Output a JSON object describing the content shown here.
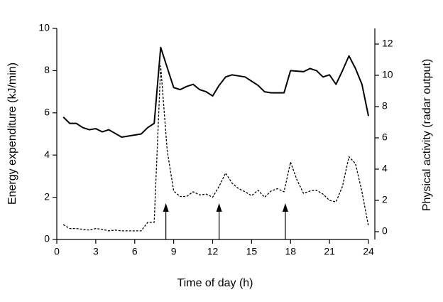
{
  "chart_data": {
    "type": "line",
    "xlabel": "Time of day (h)",
    "ylabel": "Energy expenditure (kJ/min)",
    "y2label": "Physical activity (radar output)",
    "xlim": [
      0,
      24
    ],
    "xticks": [
      0,
      3,
      6,
      9,
      12,
      15,
      18,
      21,
      24
    ],
    "ylim": [
      0,
      10
    ],
    "yticks": [
      0,
      2,
      4,
      6,
      8,
      10
    ],
    "y2lim": [
      -0.5,
      13
    ],
    "y2ticks": [
      0,
      2,
      4,
      6,
      8,
      10,
      12
    ],
    "arrows": [
      8.4,
      12.5,
      17.6
    ],
    "series": [
      {
        "name": "Energy expenditure",
        "color": "#000000",
        "line_style": "solid",
        "x": [
          0.5,
          1.0,
          1.5,
          2.0,
          2.5,
          3.0,
          3.5,
          4.0,
          5.0,
          6.0,
          6.5,
          7.0,
          7.5,
          8.0,
          8.5,
          9.0,
          9.5,
          10.0,
          10.5,
          11.0,
          11.5,
          12.0,
          12.5,
          13.0,
          13.5,
          14.0,
          14.5,
          15.0,
          15.5,
          16.0,
          16.5,
          17.5,
          18.0,
          19.0,
          19.5,
          20.0,
          20.5,
          21.0,
          21.5,
          22.0,
          22.5,
          23.0,
          23.5,
          24.0
        ],
        "values": [
          5.8,
          5.5,
          5.5,
          5.3,
          5.2,
          5.25,
          5.1,
          5.2,
          4.85,
          4.95,
          5.0,
          5.3,
          5.5,
          9.1,
          8.15,
          7.2,
          7.1,
          7.25,
          7.35,
          7.1,
          7.0,
          6.8,
          7.3,
          7.7,
          7.8,
          7.75,
          7.7,
          7.5,
          7.3,
          7.0,
          6.95,
          6.95,
          8.0,
          7.95,
          8.1,
          8.0,
          7.7,
          7.8,
          7.35,
          8.0,
          8.7,
          8.1,
          7.35,
          5.85
        ]
      },
      {
        "name": "Physical activity",
        "color": "#000000",
        "line_style": "dashed",
        "axis": "y2",
        "x": [
          0.5,
          1.0,
          1.5,
          2.0,
          2.5,
          3.0,
          3.5,
          4.0,
          4.5,
          5.0,
          6.0,
          6.5,
          7.0,
          7.5,
          8.0,
          8.5,
          9.0,
          9.5,
          10.0,
          10.5,
          11.0,
          11.5,
          12.0,
          12.5,
          13.0,
          13.5,
          14.0,
          14.5,
          15.0,
          15.5,
          16.0,
          16.5,
          17.0,
          17.5,
          18.0,
          18.5,
          19.0,
          19.5,
          20.0,
          20.5,
          21.0,
          21.5,
          22.0,
          22.5,
          23.0,
          23.5,
          24.0
        ],
        "values": [
          0.45,
          0.2,
          0.2,
          0.15,
          0.1,
          0.2,
          0.15,
          0.05,
          0.1,
          0.05,
          0.05,
          0.05,
          0.6,
          0.6,
          10.6,
          5.2,
          2.6,
          2.25,
          2.25,
          2.55,
          2.35,
          2.4,
          2.2,
          2.9,
          3.75,
          3.1,
          2.75,
          2.55,
          2.3,
          2.65,
          2.2,
          2.6,
          2.75,
          2.55,
          4.45,
          3.3,
          2.45,
          2.6,
          2.65,
          2.4,
          2.0,
          1.9,
          2.9,
          4.8,
          4.35,
          2.55,
          0.35
        ]
      }
    ]
  }
}
